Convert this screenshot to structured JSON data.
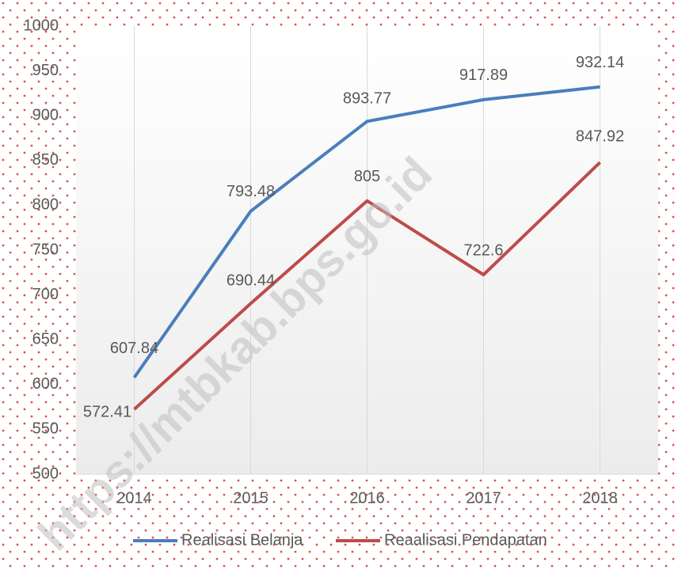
{
  "chart_data": {
    "type": "line",
    "categories": [
      "2014",
      "2015",
      "2016",
      "2017",
      "2018"
    ],
    "series": [
      {
        "name": "Realisasi Belanja",
        "color": "#4a7ebb",
        "values": [
          607.84,
          793.48,
          893.77,
          917.89,
          932.14
        ]
      },
      {
        "name": "Reaalisasi Pendapatan",
        "color": "#be4b48",
        "values": [
          572.41,
          690.44,
          805,
          722.6,
          847.92
        ]
      }
    ],
    "ylim": [
      500,
      1000
    ],
    "yticks": [
      500,
      550,
      600,
      650,
      700,
      750,
      800,
      850,
      900,
      950,
      1000
    ],
    "grid": "x",
    "legend": "bottom",
    "watermark": "https://mtbkab.bps.go.id"
  }
}
